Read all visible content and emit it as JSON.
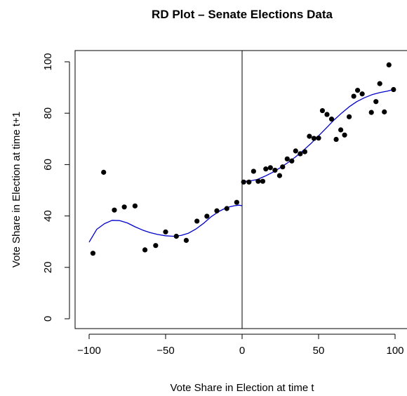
{
  "chart_data": {
    "type": "scatter",
    "title": "RD Plot – Senate Elections Data",
    "xlabel": "Vote Share in Election at time t",
    "ylabel": "Vote Share in Election at time t+1",
    "xlim": [
      -100,
      100
    ],
    "ylim": [
      0,
      100
    ],
    "x_ticks": [
      -100,
      -50,
      0,
      50,
      100
    ],
    "y_ticks": [
      0,
      20,
      40,
      60,
      80,
      100
    ],
    "x_tick_labels": [
      "−100",
      "−50",
      "0",
      "50",
      "100"
    ],
    "y_tick_labels": [
      "0",
      "20",
      "40",
      "60",
      "80",
      "100"
    ],
    "cutoff": 0,
    "grid": false,
    "points_color": "#000000",
    "fit_color": "#0000cc",
    "points": [
      {
        "x": -97.5,
        "y": 25.5
      },
      {
        "x": -90.5,
        "y": 57.0
      },
      {
        "x": -83.5,
        "y": 42.3
      },
      {
        "x": -77.0,
        "y": 43.5
      },
      {
        "x": -70.0,
        "y": 43.9
      },
      {
        "x": -63.5,
        "y": 26.8
      },
      {
        "x": -56.5,
        "y": 28.5
      },
      {
        "x": -50.0,
        "y": 33.8
      },
      {
        "x": -43.0,
        "y": 32.1
      },
      {
        "x": -36.5,
        "y": 30.5
      },
      {
        "x": -29.5,
        "y": 38.0
      },
      {
        "x": -23.0,
        "y": 39.9
      },
      {
        "x": -16.5,
        "y": 42.0
      },
      {
        "x": -10.0,
        "y": 42.9
      },
      {
        "x": -3.5,
        "y": 45.3
      },
      {
        "x": 1.0,
        "y": 53.2
      },
      {
        "x": 4.5,
        "y": 53.2
      },
      {
        "x": 7.5,
        "y": 57.4
      },
      {
        "x": 10.5,
        "y": 53.5
      },
      {
        "x": 13.5,
        "y": 53.5
      },
      {
        "x": 15.5,
        "y": 58.3
      },
      {
        "x": 18.5,
        "y": 58.8
      },
      {
        "x": 21.5,
        "y": 57.8
      },
      {
        "x": 24.5,
        "y": 55.7
      },
      {
        "x": 26.5,
        "y": 59.1
      },
      {
        "x": 29.5,
        "y": 62.2
      },
      {
        "x": 32.5,
        "y": 61.4
      },
      {
        "x": 35.0,
        "y": 65.3
      },
      {
        "x": 38.0,
        "y": 64.2
      },
      {
        "x": 41.0,
        "y": 65.0
      },
      {
        "x": 44.0,
        "y": 71.0
      },
      {
        "x": 47.0,
        "y": 70.2
      },
      {
        "x": 50.0,
        "y": 70.3
      },
      {
        "x": 52.5,
        "y": 81.0
      },
      {
        "x": 55.5,
        "y": 79.5
      },
      {
        "x": 58.5,
        "y": 77.7
      },
      {
        "x": 61.5,
        "y": 69.8
      },
      {
        "x": 64.5,
        "y": 73.5
      },
      {
        "x": 67.0,
        "y": 71.5
      },
      {
        "x": 70.0,
        "y": 78.6
      },
      {
        "x": 73.0,
        "y": 86.6
      },
      {
        "x": 75.5,
        "y": 88.9
      },
      {
        "x": 78.5,
        "y": 87.5
      },
      {
        "x": 84.5,
        "y": 80.3
      },
      {
        "x": 87.5,
        "y": 84.5
      },
      {
        "x": 90.0,
        "y": 91.5
      },
      {
        "x": 93.0,
        "y": 80.5
      },
      {
        "x": 96.0,
        "y": 98.8
      },
      {
        "x": 99.0,
        "y": 89.2
      }
    ],
    "fit_left": [
      {
        "x": -100,
        "y": 29.8
      },
      {
        "x": -95,
        "y": 34.8
      },
      {
        "x": -90,
        "y": 37.0
      },
      {
        "x": -85,
        "y": 38.3
      },
      {
        "x": -80,
        "y": 38.2
      },
      {
        "x": -75,
        "y": 37.3
      },
      {
        "x": -70,
        "y": 35.8
      },
      {
        "x": -65,
        "y": 34.5
      },
      {
        "x": -60,
        "y": 33.5
      },
      {
        "x": -55,
        "y": 32.8
      },
      {
        "x": -50,
        "y": 32.3
      },
      {
        "x": -45,
        "y": 32.1
      },
      {
        "x": -40,
        "y": 32.4
      },
      {
        "x": -35,
        "y": 33.3
      },
      {
        "x": -30,
        "y": 35.0
      },
      {
        "x": -25,
        "y": 37.2
      },
      {
        "x": -20,
        "y": 39.8
      },
      {
        "x": -15,
        "y": 41.8
      },
      {
        "x": -10,
        "y": 43.3
      },
      {
        "x": -5,
        "y": 44.0
      },
      {
        "x": -2,
        "y": 44.2
      },
      {
        "x": 0,
        "y": 44.0
      }
    ],
    "fit_right": [
      {
        "x": 0,
        "y": 53.5
      },
      {
        "x": 5,
        "y": 53.6
      },
      {
        "x": 10,
        "y": 54.2
      },
      {
        "x": 15,
        "y": 55.5
      },
      {
        "x": 20,
        "y": 57.0
      },
      {
        "x": 25,
        "y": 58.8
      },
      {
        "x": 30,
        "y": 60.8
      },
      {
        "x": 35,
        "y": 63.0
      },
      {
        "x": 40,
        "y": 65.5
      },
      {
        "x": 45,
        "y": 68.2
      },
      {
        "x": 50,
        "y": 71.2
      },
      {
        "x": 55,
        "y": 74.2
      },
      {
        "x": 60,
        "y": 77.3
      },
      {
        "x": 65,
        "y": 80.0
      },
      {
        "x": 70,
        "y": 82.5
      },
      {
        "x": 75,
        "y": 84.5
      },
      {
        "x": 80,
        "y": 86.0
      },
      {
        "x": 85,
        "y": 87.2
      },
      {
        "x": 90,
        "y": 88.0
      },
      {
        "x": 95,
        "y": 88.6
      },
      {
        "x": 99,
        "y": 89.2
      }
    ]
  }
}
